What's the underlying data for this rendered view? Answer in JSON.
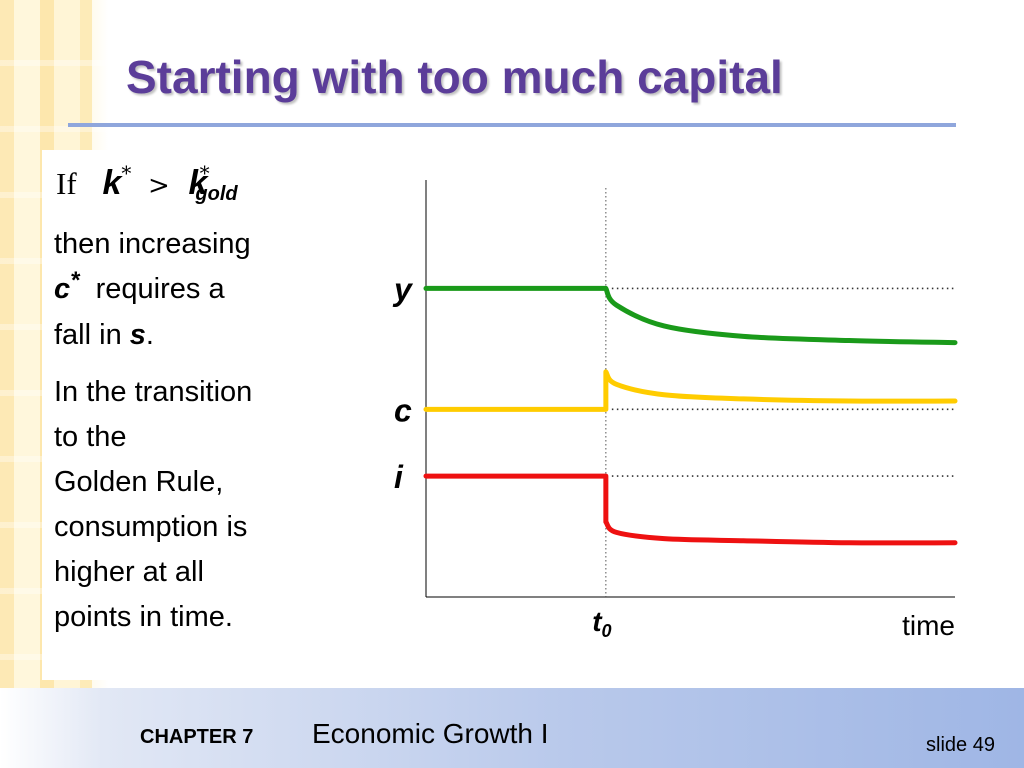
{
  "title": "Starting with too much capital",
  "condition": {
    "if_word": "If",
    "k": "k",
    "star": "*",
    "gt": ">",
    "gold_sub": "gold"
  },
  "paragraph1": {
    "text_a": "then increasing",
    "c_var": "c",
    "c_star": "*",
    "text_b": "requires a",
    "text_c": "fall in",
    "s_var": "s",
    "period": "."
  },
  "paragraph2": {
    "lines": [
      "In the transition",
      "to the",
      "Golden Rule,",
      "consumption is",
      "higher at all",
      "points in time."
    ]
  },
  "footer": {
    "chapter": "CHAPTER 7",
    "book": "Economic Growth I",
    "slide": "slide 49"
  },
  "chart_data": {
    "type": "line",
    "xlabel": "time",
    "event_label": "t",
    "event_sub": "0",
    "x_range": [
      0,
      10
    ],
    "y_range": [
      0,
      10
    ],
    "event_x": 3.4,
    "series": [
      {
        "name": "y",
        "color": "#1a9a1a",
        "x": [
          0,
          3.4,
          3.6,
          4.5,
          6,
          8,
          10
        ],
        "y": [
          7.4,
          7.4,
          7.0,
          6.5,
          6.25,
          6.15,
          6.1
        ],
        "dotted_level": 7.4
      },
      {
        "name": "c",
        "color": "#ffcc00",
        "x": [
          0,
          3.4,
          3.4,
          3.6,
          4.5,
          6,
          8,
          10
        ],
        "y": [
          4.5,
          4.5,
          5.4,
          5.1,
          4.85,
          4.75,
          4.7,
          4.7
        ],
        "dotted_level": 4.5
      },
      {
        "name": "i",
        "color": "#ee1111",
        "x": [
          0,
          3.4,
          3.4,
          3.6,
          4.5,
          6,
          8,
          10
        ],
        "y": [
          2.9,
          2.9,
          1.8,
          1.55,
          1.4,
          1.35,
          1.3,
          1.3
        ],
        "dotted_level": 2.9
      }
    ]
  }
}
